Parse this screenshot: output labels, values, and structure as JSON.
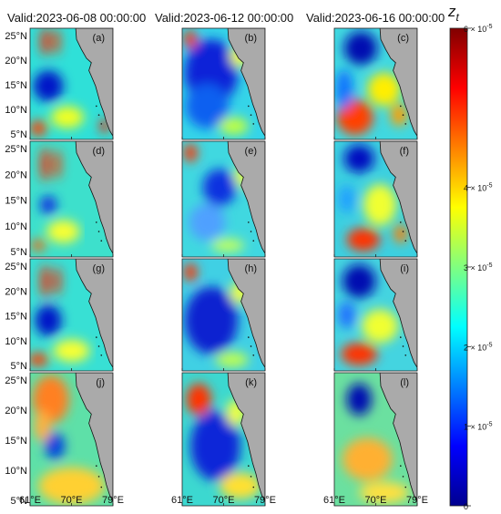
{
  "columns": [
    {
      "header": "Valid:2023-06-08 00:00:00"
    },
    {
      "header": "Valid:2023-06-12 00:00:00"
    },
    {
      "header": "Valid:2023-06-16 00:00:00"
    }
  ],
  "panel_labels": [
    "(a)",
    "(b)",
    "(c)",
    "(d)",
    "(e)",
    "(f)",
    "(g)",
    "(h)",
    "(i)",
    "(j)",
    "(k)",
    "(l)"
  ],
  "axes": {
    "lat_ticks": [
      "25°N",
      "20°N",
      "15°N",
      "10°N",
      "5°N"
    ],
    "lon_ticks": [
      "61°E",
      "70°E",
      "79°E"
    ]
  },
  "colorbar": {
    "title": "z",
    "title_sub": "t",
    "ticks": [
      {
        "mant": "6 × 10",
        "exp": "-5",
        "value": 6
      },
      {
        "mant": "4 × 10",
        "exp": "-5",
        "value": 4
      },
      {
        "mant": "3 × 10",
        "exp": "-5",
        "value": 3
      },
      {
        "mant": "2 × 10",
        "exp": "-5",
        "value": 2
      },
      {
        "mant": "1 × 10",
        "exp": "-5",
        "value": 1
      },
      {
        "mant": "0",
        "exp": "",
        "value": 0
      }
    ],
    "colormap": [
      "#00008f",
      "#0000ff",
      "#0080ff",
      "#00ffff",
      "#80ff80",
      "#ffff00",
      "#ff8000",
      "#ff0000",
      "#800000"
    ]
  },
  "colors": {
    "land": "#aaaaaa",
    "frame": "#222222"
  }
}
